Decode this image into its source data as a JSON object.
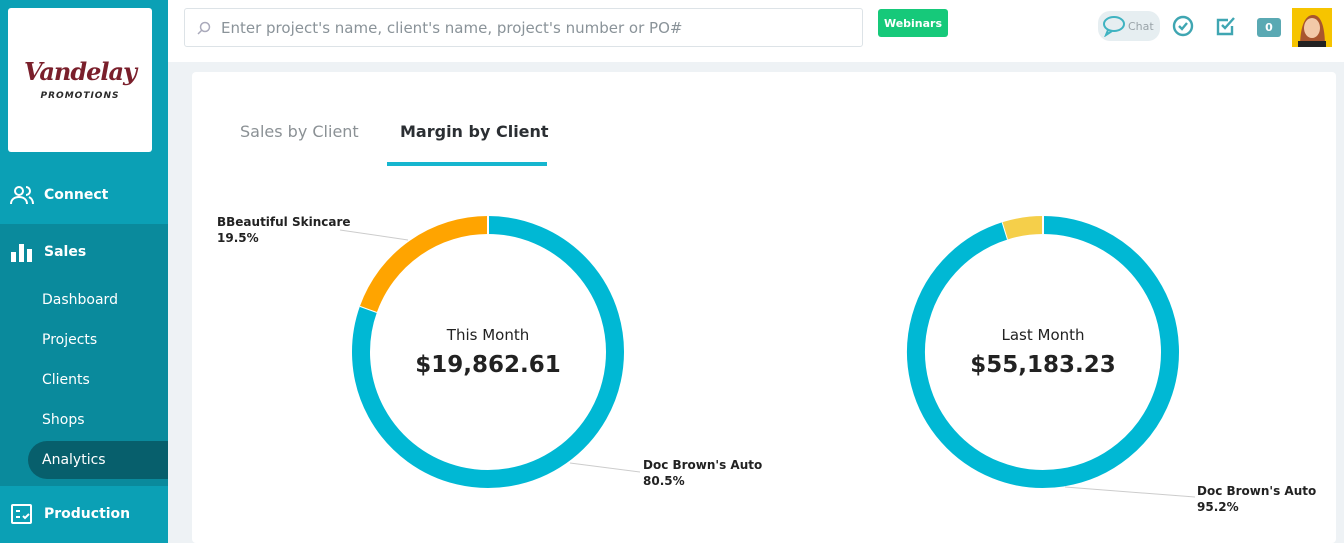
{
  "logo": {
    "name": "Vandelay",
    "sub": "PROMOTIONS"
  },
  "sidebar": {
    "sections": [
      {
        "label": "Connect",
        "icon": "users-icon"
      },
      {
        "label": "Sales",
        "icon": "bar-chart-icon"
      },
      {
        "label": "Production",
        "icon": "checklist-icon"
      }
    ],
    "sales_items": [
      {
        "label": "Dashboard"
      },
      {
        "label": "Projects"
      },
      {
        "label": "Clients"
      },
      {
        "label": "Shops"
      },
      {
        "label": "Analytics",
        "active": true
      }
    ]
  },
  "header": {
    "search_placeholder": "Enter project's name, client's name, project's number or PO#",
    "webinars": "Webinars",
    "chat": "Chat",
    "badge_count": "0"
  },
  "tabs": [
    {
      "label": "Sales by Client"
    },
    {
      "label": "Margin by Client",
      "active": true
    }
  ],
  "colors": {
    "cyan": "#00b8d4",
    "orange": "#ffa400",
    "yellow": "#f5cf4a",
    "sidebar": "#0ba0b5"
  },
  "chart_data": [
    {
      "type": "pie",
      "title": "This Month",
      "total": "$19,862.61",
      "slices": [
        {
          "name": "Doc Brown's Auto",
          "value": 80.5,
          "label": "80.5%",
          "color": "#00b8d4"
        },
        {
          "name": "BBeautiful Skincare",
          "value": 19.5,
          "label": "19.5%",
          "color": "#ffa400"
        }
      ]
    },
    {
      "type": "pie",
      "title": "Last Month",
      "total": "$55,183.23",
      "slices": [
        {
          "name": "Doc Brown's Auto",
          "value": 95.2,
          "label": "95.2%",
          "color": "#00b8d4"
        },
        {
          "value": 4.8,
          "color": "#f5cf4a"
        }
      ]
    }
  ]
}
